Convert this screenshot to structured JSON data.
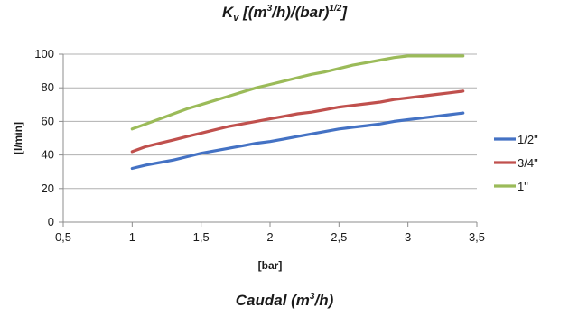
{
  "title": {
    "prefix": "K",
    "sub": "v",
    "part1": " [(m",
    "sup1": "3",
    "part2": "/h)/(bar)",
    "sup2": "1/2",
    "part3": "]"
  },
  "footer": {
    "part1": "Caudal (m",
    "sup": "3",
    "part2": "/h)"
  },
  "chart_data": {
    "type": "line",
    "title": "Kv [(m3/h)/(bar)1/2]",
    "xlabel": "[bar]",
    "ylabel": "[l/min]",
    "xlim": [
      0.5,
      3.5
    ],
    "ylim": [
      0,
      100
    ],
    "x_ticks": [
      "0,5",
      "1",
      "1,5",
      "2",
      "2,5",
      "3",
      "3,5"
    ],
    "y_ticks": [
      "0",
      "20",
      "40",
      "60",
      "80",
      "100"
    ],
    "grid": "horizontal",
    "legend_position": "right",
    "series": [
      {
        "name": "1/2\"",
        "color": "#4472c4",
        "x": [
          1.0,
          1.1,
          1.2,
          1.3,
          1.4,
          1.5,
          1.6,
          1.7,
          1.8,
          1.9,
          2.0,
          2.1,
          2.2,
          2.3,
          2.4,
          2.5,
          2.6,
          2.7,
          2.8,
          2.9,
          3.0,
          3.1,
          3.2,
          3.3,
          3.4
        ],
        "y": [
          32,
          34,
          35.5,
          37,
          39,
          41,
          42.5,
          44,
          45.5,
          47,
          48,
          49.5,
          51,
          52.5,
          54,
          55.5,
          56.5,
          57.5,
          58.5,
          60,
          61,
          62,
          63,
          64,
          65
        ]
      },
      {
        "name": "3/4\"",
        "color": "#c0504d",
        "x": [
          1.0,
          1.1,
          1.2,
          1.3,
          1.4,
          1.5,
          1.6,
          1.7,
          1.8,
          1.9,
          2.0,
          2.1,
          2.2,
          2.3,
          2.4,
          2.5,
          2.6,
          2.7,
          2.8,
          2.9,
          3.0,
          3.1,
          3.2,
          3.3,
          3.4
        ],
        "y": [
          42,
          45,
          47,
          49,
          51,
          53,
          55,
          57,
          58.5,
          60,
          61.5,
          63,
          64.5,
          65.5,
          67,
          68.5,
          69.5,
          70.5,
          71.5,
          73,
          74,
          75,
          76,
          77,
          78
        ]
      },
      {
        "name": "1\"",
        "color": "#9bbb59",
        "x": [
          1.0,
          1.1,
          1.2,
          1.3,
          1.4,
          1.5,
          1.6,
          1.7,
          1.8,
          1.9,
          2.0,
          2.1,
          2.2,
          2.3,
          2.4,
          2.5,
          2.6,
          2.7,
          2.8,
          2.9,
          3.0,
          3.1,
          3.2,
          3.3,
          3.4
        ],
        "y": [
          55.5,
          58.5,
          61.5,
          64.5,
          67.5,
          70,
          72.5,
          75,
          77.5,
          80,
          82,
          84,
          86,
          88,
          89.5,
          91.5,
          93.5,
          95,
          96.5,
          98,
          99,
          99,
          99,
          99,
          99
        ]
      }
    ]
  }
}
